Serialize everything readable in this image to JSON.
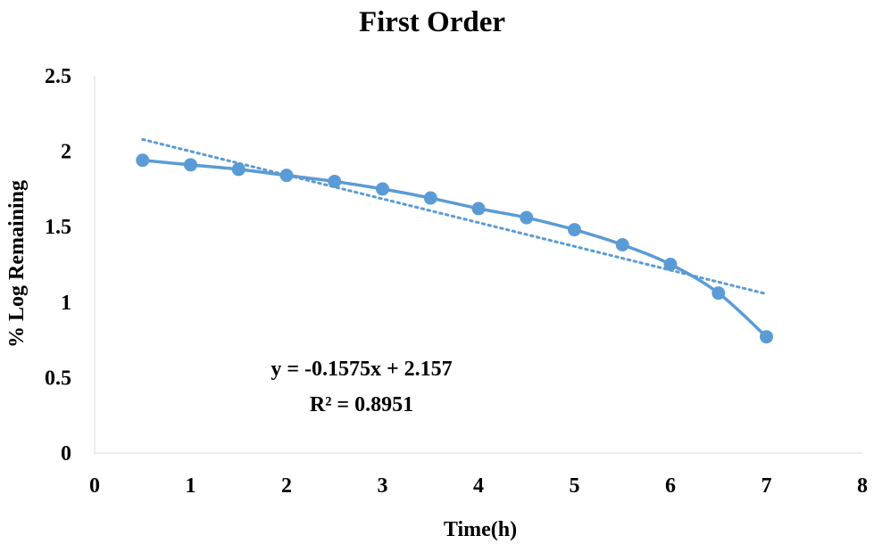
{
  "chart_data": {
    "type": "scatter",
    "title": "First Order",
    "xlabel": "Time(h)",
    "ylabel": "% Log Remaining",
    "xlim": [
      0,
      8
    ],
    "ylim": [
      0,
      2.5
    ],
    "x_ticks": [
      "0",
      "1",
      "2",
      "3",
      "4",
      "5",
      "6",
      "7",
      "8"
    ],
    "y_ticks": [
      "0",
      "0.5",
      "1",
      "1.5",
      "2",
      "2.5"
    ],
    "grid": false,
    "legend": "none",
    "series": [
      {
        "x": [
          0.5,
          1,
          1.5,
          2,
          2.5,
          3,
          3.5,
          4,
          4.5,
          5,
          5.5,
          6,
          6.5,
          7
        ],
        "y": [
          1.94,
          1.91,
          1.88,
          1.84,
          1.8,
          1.75,
          1.69,
          1.62,
          1.56,
          1.48,
          1.38,
          1.25,
          1.06,
          0.77
        ],
        "style": "smoothed line with markers",
        "color": "#5B9BD5"
      }
    ],
    "trendline": {
      "type": "linear",
      "slope": -0.1575,
      "intercept": 2.157,
      "x_range": [
        0.5,
        7
      ],
      "style": "dotted",
      "color": "#5B9BD5",
      "equation_label": "y = -0.1575x + 2.157",
      "r2_label": "R² = 0.8951"
    }
  }
}
